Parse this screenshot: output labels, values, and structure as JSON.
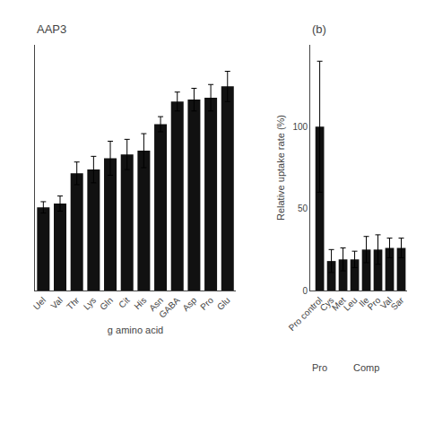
{
  "chart_data": [
    {
      "type": "bar",
      "title": "AAP3",
      "categories": [
        "Uel",
        "Val",
        "Thr",
        "Lys",
        "Gln",
        "Cit",
        "His",
        "Asn",
        "GABA",
        "Asp",
        "Pro",
        "Glu"
      ],
      "values": [
        44,
        46,
        62,
        64,
        70,
        72,
        74,
        88,
        100,
        101,
        102,
        108
      ],
      "errors": [
        3,
        4,
        6,
        7,
        9,
        8,
        9,
        4,
        5,
        6,
        7,
        8
      ],
      "x_label": "g amino acid",
      "ylim": [
        0,
        130
      ],
      "yticks": [],
      "color": "#111111",
      "grid": false,
      "tick_labels": "x"
    },
    {
      "type": "bar",
      "title": "(b)",
      "categories": [
        "Pro control",
        "Cys",
        "Met",
        "Leu",
        "Ile",
        "Pro",
        "Val",
        "Sar"
      ],
      "values": [
        100,
        18,
        19,
        19,
        25,
        25,
        26,
        26
      ],
      "errors": [
        40,
        7,
        7,
        5,
        8,
        9,
        6,
        6
      ],
      "y_label": "Relative uptake rate (%)",
      "annotations": [
        "Pro",
        "Comp"
      ],
      "ylim": [
        0,
        150
      ],
      "yticks": [
        0,
        50,
        100
      ],
      "color": "#111111",
      "grid": false
    }
  ]
}
